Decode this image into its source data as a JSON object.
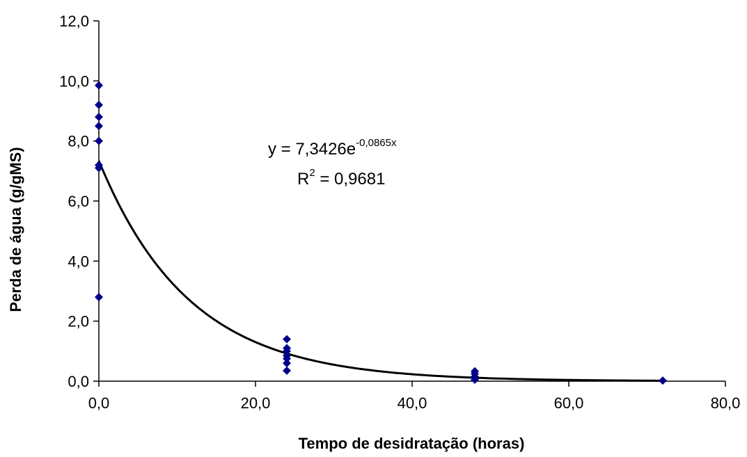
{
  "chart_data": {
    "type": "scatter",
    "xlabel": "Tempo de desidratação (horas)",
    "ylabel": "Perda de água (g/gMS)",
    "xlim": [
      0,
      80
    ],
    "ylim": [
      0,
      12
    ],
    "x_ticks": [
      0,
      20,
      40,
      60,
      80
    ],
    "y_ticks": [
      0,
      2,
      4,
      6,
      8,
      10,
      12
    ],
    "x_tick_labels": [
      "0,0",
      "20,0",
      "40,0",
      "60,0",
      "80,0"
    ],
    "y_tick_labels": [
      "0,0",
      "2,0",
      "4,0",
      "6,0",
      "8,0",
      "10,0",
      "12,0"
    ],
    "grid": false,
    "series": [
      {
        "marker": "diamond",
        "color": "#00008b",
        "points": [
          {
            "x": 0,
            "y": 9.85
          },
          {
            "x": 0,
            "y": 9.2
          },
          {
            "x": 0,
            "y": 8.8
          },
          {
            "x": 0,
            "y": 8.5
          },
          {
            "x": 0,
            "y": 8.0
          },
          {
            "x": 0,
            "y": 7.2
          },
          {
            "x": 0,
            "y": 7.1
          },
          {
            "x": 0,
            "y": 2.8
          },
          {
            "x": 24,
            "y": 1.4
          },
          {
            "x": 24,
            "y": 1.1
          },
          {
            "x": 24,
            "y": 1.0
          },
          {
            "x": 24,
            "y": 0.85
          },
          {
            "x": 24,
            "y": 0.75
          },
          {
            "x": 24,
            "y": 0.6
          },
          {
            "x": 24,
            "y": 0.35
          },
          {
            "x": 48,
            "y": 0.33
          },
          {
            "x": 48,
            "y": 0.25
          },
          {
            "x": 48,
            "y": 0.15
          },
          {
            "x": 48,
            "y": 0.05
          },
          {
            "x": 72,
            "y": 0.02
          }
        ]
      }
    ],
    "trendline": {
      "type": "exponential",
      "a": 7.3426,
      "b": -0.0865,
      "x_range": [
        0,
        72
      ],
      "color": "#000000"
    },
    "annotation": {
      "equation_main": "y = 7,3426e",
      "equation_exp": "-0,0865x",
      "r2_main": "R",
      "r2_sup": "2",
      "r2_value": " = 0,9681"
    }
  }
}
